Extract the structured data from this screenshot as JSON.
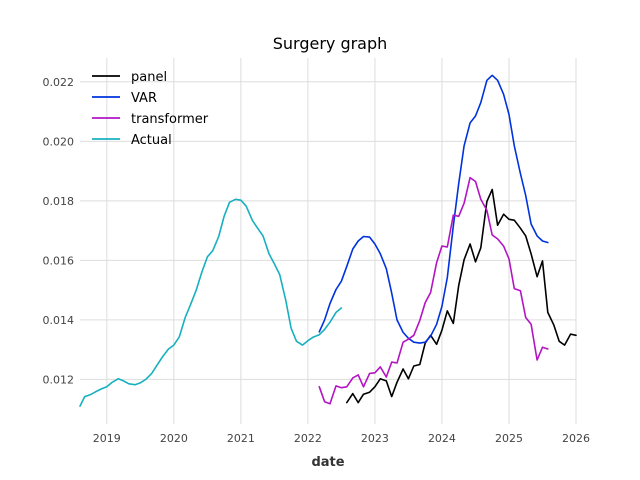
{
  "chart_data": {
    "type": "line",
    "title": "Surgery graph",
    "xlabel": "date",
    "ylabel": "",
    "xlim": [
      2018.6,
      2026.0
    ],
    "ylim": [
      0.0105,
      0.0228
    ],
    "x_ticks": [
      2019,
      2020,
      2021,
      2022,
      2023,
      2024,
      2025,
      2026
    ],
    "x_tick_labels": [
      "2019",
      "2020",
      "2021",
      "2022",
      "2023",
      "2024",
      "2025",
      "2026"
    ],
    "y_ticks": [
      0.012,
      0.014,
      0.016,
      0.018,
      0.02,
      0.022
    ],
    "y_tick_labels": [
      "0.012",
      "0.014",
      "0.016",
      "0.018",
      "0.020",
      "0.022"
    ],
    "grid": true,
    "legend_position": "top-left",
    "series": [
      {
        "name": "panel",
        "color": "#000000",
        "x": [
          2022.58,
          2022.67,
          2022.75,
          2022.83,
          2022.92,
          2023.0,
          2023.08,
          2023.17,
          2023.25,
          2023.33,
          2023.42,
          2023.5,
          2023.58,
          2023.67,
          2023.75,
          2023.83,
          2023.92,
          2024.0,
          2024.08,
          2024.17,
          2024.25,
          2024.33,
          2024.42,
          2024.5,
          2024.58,
          2024.67,
          2024.75,
          2024.83,
          2024.92,
          2025.0,
          2025.08,
          2025.17,
          2025.25,
          2025.33,
          2025.42,
          2025.5,
          2025.58,
          2025.67,
          2025.75,
          2025.83,
          2025.92,
          2026.0
        ],
        "y": [
          0.01122,
          0.01152,
          0.01122,
          0.0115,
          0.01157,
          0.01175,
          0.01202,
          0.01195,
          0.01142,
          0.0119,
          0.01235,
          0.01202,
          0.01245,
          0.0125,
          0.01322,
          0.01348,
          0.01318,
          0.01365,
          0.0143,
          0.01388,
          0.01515,
          0.01602,
          0.01655,
          0.01595,
          0.01642,
          0.01798,
          0.01838,
          0.01718,
          0.01755,
          0.01738,
          0.01735,
          0.01708,
          0.01682,
          0.01622,
          0.01545,
          0.01598,
          0.01425,
          0.01382,
          0.01328,
          0.01315,
          0.01352,
          0.01348
        ]
      },
      {
        "name": "VAR",
        "color": "#0033dd",
        "x": [
          2022.17,
          2022.25,
          2022.33,
          2022.42,
          2022.5,
          2022.58,
          2022.67,
          2022.75,
          2022.83,
          2022.92,
          2023.0,
          2023.08,
          2023.17,
          2023.25,
          2023.33,
          2023.42,
          2023.5,
          2023.58,
          2023.67,
          2023.75,
          2023.83,
          2023.92,
          2024.0,
          2024.08,
          2024.17,
          2024.25,
          2024.33,
          2024.42,
          2024.5,
          2024.58,
          2024.67,
          2024.75,
          2024.83,
          2024.92,
          2025.0,
          2025.08,
          2025.17,
          2025.25,
          2025.33,
          2025.42,
          2025.5,
          2025.58
        ],
        "y": [
          0.0136,
          0.014,
          0.01455,
          0.01502,
          0.0153,
          0.0158,
          0.01638,
          0.01665,
          0.0168,
          0.01678,
          0.01655,
          0.01622,
          0.01572,
          0.0149,
          0.014,
          0.01358,
          0.01338,
          0.01325,
          0.01322,
          0.01325,
          0.01345,
          0.01385,
          0.01445,
          0.01542,
          0.01715,
          0.01858,
          0.01985,
          0.02062,
          0.02085,
          0.0213,
          0.02205,
          0.02222,
          0.02205,
          0.02158,
          0.0209,
          0.01985,
          0.01892,
          0.01818,
          0.01722,
          0.01682,
          0.01665,
          0.0166
        ]
      },
      {
        "name": "transformer",
        "color": "#b314c4",
        "x": [
          2022.17,
          2022.25,
          2022.33,
          2022.42,
          2022.5,
          2022.58,
          2022.67,
          2022.75,
          2022.83,
          2022.92,
          2023.0,
          2023.08,
          2023.17,
          2023.25,
          2023.33,
          2023.42,
          2023.5,
          2023.58,
          2023.67,
          2023.75,
          2023.83,
          2023.92,
          2024.0,
          2024.08,
          2024.17,
          2024.25,
          2024.33,
          2024.42,
          2024.5,
          2024.58,
          2024.67,
          2024.75,
          2024.83,
          2024.92,
          2025.0,
          2025.08,
          2025.17,
          2025.25,
          2025.33,
          2025.42,
          2025.5,
          2025.58
        ],
        "y": [
          0.01175,
          0.01125,
          0.01118,
          0.01178,
          0.01172,
          0.01175,
          0.01205,
          0.01215,
          0.01175,
          0.0122,
          0.01222,
          0.01242,
          0.01208,
          0.01258,
          0.01255,
          0.01325,
          0.01335,
          0.01348,
          0.01398,
          0.01458,
          0.01492,
          0.01592,
          0.01648,
          0.01645,
          0.01752,
          0.01748,
          0.01792,
          0.01878,
          0.01865,
          0.01805,
          0.01768,
          0.01685,
          0.01672,
          0.01648,
          0.01605,
          0.01505,
          0.01498,
          0.01408,
          0.01385,
          0.01265,
          0.01308,
          0.01302
        ]
      },
      {
        "name": "Actual",
        "color": "#17b0c0",
        "x": [
          2018.6,
          2018.67,
          2018.75,
          2018.83,
          2018.92,
          2019.0,
          2019.08,
          2019.17,
          2019.25,
          2019.33,
          2019.42,
          2019.5,
          2019.58,
          2019.67,
          2019.75,
          2019.83,
          2019.92,
          2020.0,
          2020.08,
          2020.17,
          2020.25,
          2020.33,
          2020.42,
          2020.5,
          2020.58,
          2020.67,
          2020.75,
          2020.83,
          2020.92,
          2021.0,
          2021.08,
          2021.17,
          2021.25,
          2021.33,
          2021.42,
          2021.5,
          2021.58,
          2021.67,
          2021.75,
          2021.83,
          2021.92,
          2022.0,
          2022.08,
          2022.17,
          2022.25,
          2022.33,
          2022.42,
          2022.5
        ],
        "y": [
          0.0111,
          0.01142,
          0.01148,
          0.01158,
          0.01168,
          0.01175,
          0.0119,
          0.01202,
          0.01195,
          0.01185,
          0.01182,
          0.01188,
          0.012,
          0.0122,
          0.01248,
          0.01275,
          0.01302,
          0.01315,
          0.01342,
          0.01408,
          0.01452,
          0.01498,
          0.01562,
          0.01612,
          0.01632,
          0.0168,
          0.01748,
          0.01795,
          0.01805,
          0.01802,
          0.01782,
          0.01735,
          0.01708,
          0.01682,
          0.01622,
          0.01588,
          0.01552,
          0.01465,
          0.01372,
          0.01328,
          0.01315,
          0.0133,
          0.01342,
          0.0135,
          0.01368,
          0.01392,
          0.01425,
          0.0144
        ]
      }
    ]
  }
}
